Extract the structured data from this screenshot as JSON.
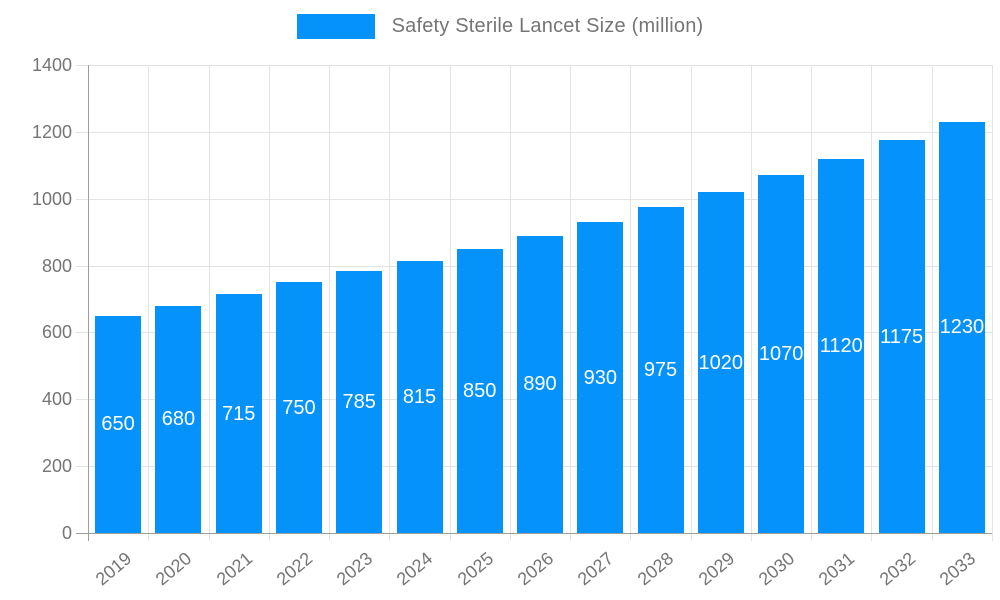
{
  "chart_data": {
    "type": "bar",
    "title": "Safety Sterile Lancet Size (million)",
    "legend": {
      "label": "Safety Sterile Lancet Size (million)",
      "position": "top-center"
    },
    "categories": [
      "2019",
      "2020",
      "2021",
      "2022",
      "2023",
      "2024",
      "2025",
      "2026",
      "2027",
      "2028",
      "2029",
      "2030",
      "2031",
      "2032",
      "2033"
    ],
    "series": [
      {
        "name": "Safety Sterile Lancet Size (million)",
        "values": [
          650,
          680,
          715,
          750,
          785,
          815,
          850,
          890,
          930,
          975,
          1020,
          1070,
          1120,
          1175,
          1230
        ]
      }
    ],
    "xlabel": "",
    "ylabel": "",
    "ylim": [
      0,
      1400
    ],
    "yticks": [
      0,
      200,
      400,
      600,
      800,
      1000,
      1200,
      1400
    ],
    "grid": true,
    "value_labels": "inside-center",
    "x_label_rotation_deg": -40,
    "colors": {
      "bar": "#0692fb",
      "value_label": "#ffffff",
      "axis_text": "#757575",
      "gridline": "#e3e3e3",
      "axis_line": "#9e9e9e",
      "background": "#ffffff"
    }
  }
}
